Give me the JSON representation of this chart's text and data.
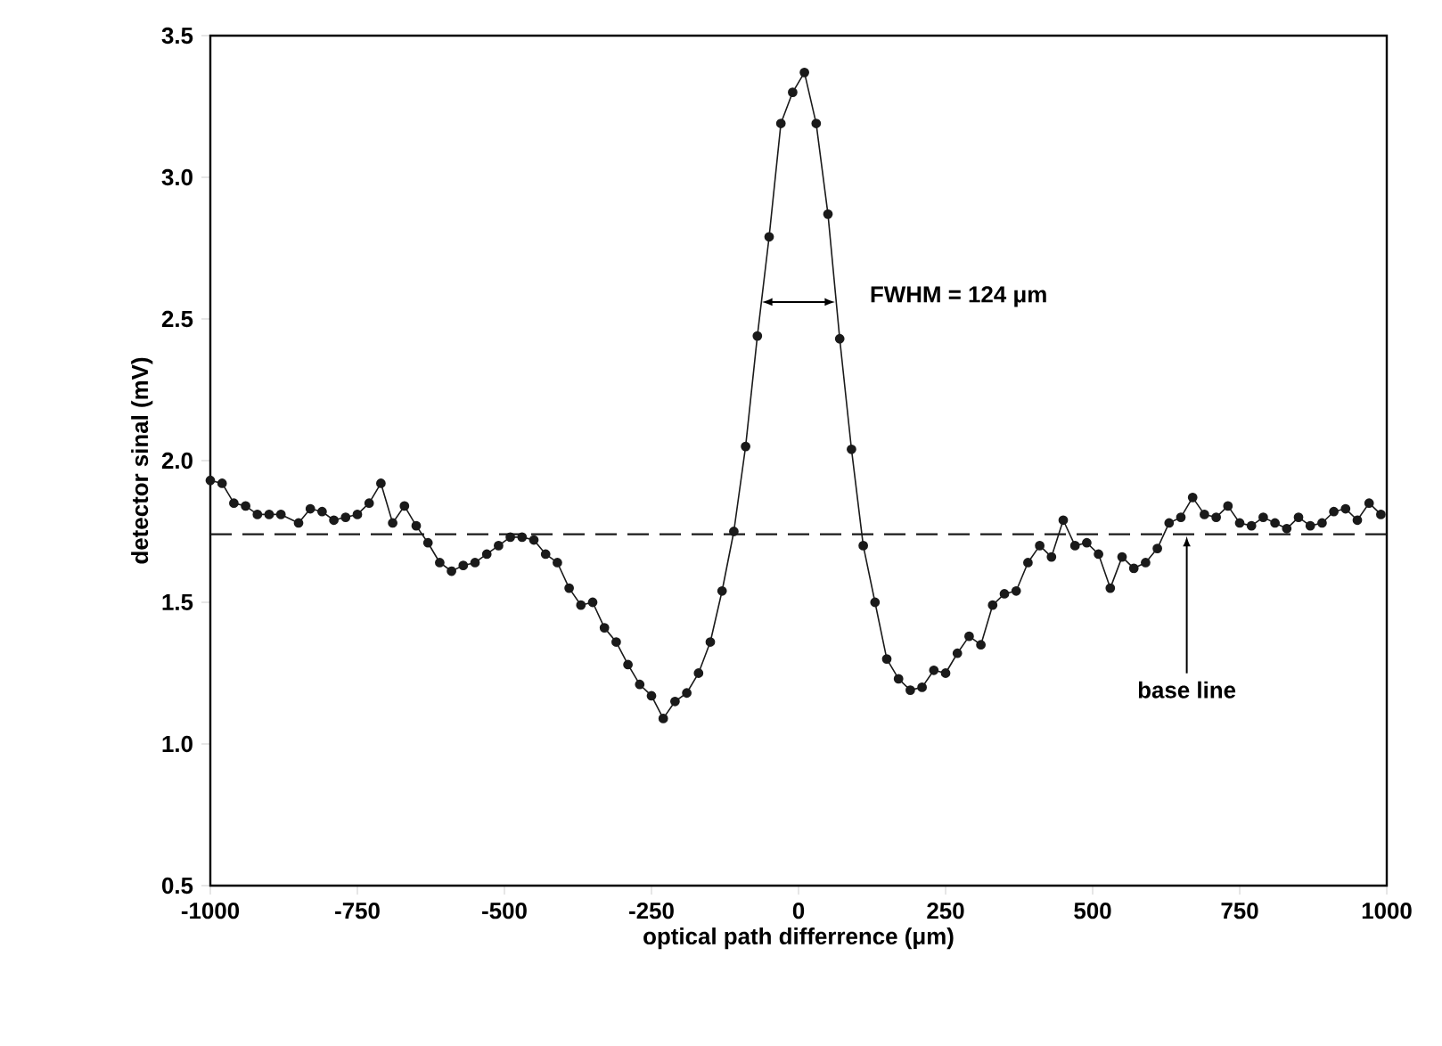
{
  "chart_data": {
    "type": "line",
    "xlabel": "optical path differrence (μm)",
    "ylabel": "detector sinal (mV)",
    "xlim": [
      -1000,
      1000
    ],
    "ylim": [
      0.5,
      3.5
    ],
    "xticks": [
      -1000,
      -750,
      -500,
      -250,
      0,
      250,
      500,
      750,
      1000
    ],
    "yticks": [
      {
        "value": 0.5,
        "label": "0.5"
      },
      {
        "value": 1.0,
        "label": "1.0"
      },
      {
        "value": 1.5,
        "label": "1.5"
      },
      {
        "value": 2.0,
        "label": "2.0"
      },
      {
        "value": 2.5,
        "label": "2.5"
      },
      {
        "value": 3.0,
        "label": "3.0"
      },
      {
        "value": 3.5,
        "label": "3.5"
      }
    ],
    "marker": "circle",
    "line_style": "solid",
    "series": [
      {
        "color": "#1a1a1a",
        "x": [
          -1000,
          -980,
          -960,
          -940,
          -920,
          -900,
          -880,
          -850,
          -830,
          -810,
          -790,
          -770,
          -750,
          -730,
          -710,
          -690,
          -670,
          -650,
          -630,
          -610,
          -590,
          -570,
          -550,
          -530,
          -510,
          -490,
          -470,
          -450,
          -430,
          -410,
          -390,
          -370,
          -350,
          -330,
          -310,
          -290,
          -270,
          -250,
          -230,
          -210,
          -190,
          -170,
          -150,
          -130,
          -110,
          -90,
          -70,
          -50,
          -30,
          -10,
          10,
          30,
          50,
          70,
          90,
          110,
          130,
          150,
          170,
          190,
          210,
          230,
          250,
          270,
          290,
          310,
          330,
          350,
          370,
          390,
          410,
          430,
          450,
          470,
          490,
          510,
          530,
          550,
          570,
          590,
          610,
          630,
          650,
          670,
          690,
          710,
          730,
          750,
          770,
          790,
          810,
          830,
          850,
          870,
          890,
          910,
          930,
          950,
          970,
          990
        ],
        "values": [
          1.93,
          1.92,
          1.85,
          1.84,
          1.81,
          1.81,
          1.81,
          1.78,
          1.83,
          1.82,
          1.79,
          1.8,
          1.81,
          1.85,
          1.92,
          1.78,
          1.84,
          1.77,
          1.71,
          1.64,
          1.61,
          1.63,
          1.64,
          1.67,
          1.7,
          1.73,
          1.73,
          1.72,
          1.67,
          1.64,
          1.55,
          1.49,
          1.5,
          1.41,
          1.36,
          1.28,
          1.21,
          1.17,
          1.09,
          1.15,
          1.18,
          1.25,
          1.36,
          1.54,
          1.75,
          2.05,
          2.44,
          2.79,
          3.19,
          3.3,
          3.37,
          3.19,
          2.87,
          2.43,
          2.04,
          1.7,
          1.5,
          1.3,
          1.23,
          1.19,
          1.2,
          1.26,
          1.25,
          1.32,
          1.38,
          1.35,
          1.49,
          1.53,
          1.54,
          1.64,
          1.7,
          1.66,
          1.79,
          1.7,
          1.71,
          1.67,
          1.55,
          1.66,
          1.62,
          1.64,
          1.69,
          1.78,
          1.8,
          1.87,
          1.81,
          1.8,
          1.84,
          1.78,
          1.77,
          1.8,
          1.78,
          1.76,
          1.8,
          1.77,
          1.78,
          1.82,
          1.83,
          1.79,
          1.85,
          1.81
        ]
      }
    ],
    "ref_lines": [
      {
        "axis": "y",
        "value": 1.74,
        "line_style": "dashed",
        "color": "#1a1a1a"
      }
    ],
    "annotations": [
      {
        "text": "FWHM = 124 μm",
        "x": 62,
        "y": 2.56
      },
      {
        "text": "base line",
        "x": 660,
        "y": 1.74
      }
    ]
  }
}
